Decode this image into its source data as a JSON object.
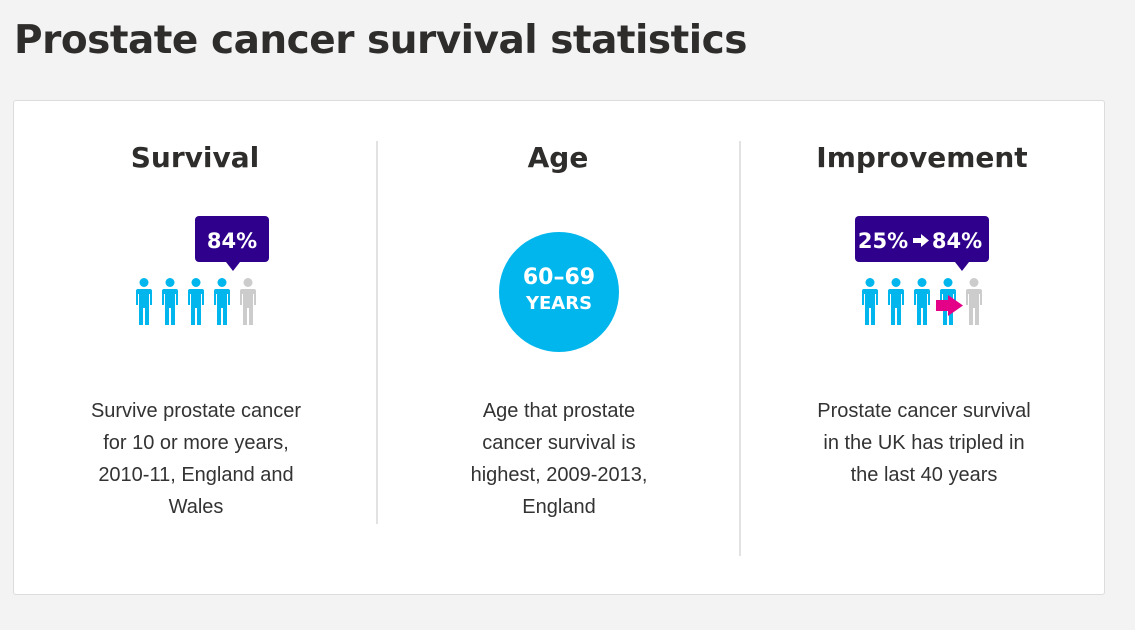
{
  "page": {
    "title": "Prostate cancer survival statistics"
  },
  "colors": {
    "purple": "#2e008b",
    "cyan": "#00b6ed",
    "grey_figure": "#cccccc",
    "magenta": "#e40087",
    "text": "#2e2d2c"
  },
  "columns": [
    {
      "heading": "Survival",
      "badge": "84%",
      "graphic": "people-icons",
      "figures_filled": 4,
      "figures_total": 5,
      "text": "Survive prostate cancer for 10 or more years, 2010-11, England and Wales"
    },
    {
      "heading": "Age",
      "circle_range": "60–69",
      "circle_unit": "YEARS",
      "graphic": "age-circle",
      "text": "Age that prostate cancer survival is highest, 2009-2013, England"
    },
    {
      "heading": "Improvement",
      "badge_from": "25%",
      "badge_to": "84%",
      "graphic": "people-icons-with-arrow",
      "figures_filled": 4,
      "figures_total": 5,
      "text": "Prostate cancer survival in the UK has tripled in the last 40 years"
    }
  ]
}
